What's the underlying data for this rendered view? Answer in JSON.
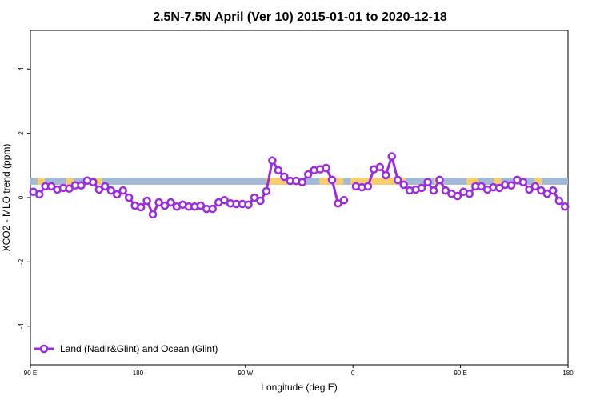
{
  "chart_data": {
    "type": "line",
    "title": "2.5N-7.5N April (Ver 10)   2015-01-01 to 2020-12-18",
    "xlabel": "Longitude (deg E)",
    "ylabel": "XCO2 - MLO trend (ppm)",
    "xlim": [
      90,
      450
    ],
    "ylim": [
      -5.2,
      5.2
    ],
    "x_ticks": [
      {
        "value": 90,
        "label": "90 E"
      },
      {
        "value": 180,
        "label": "180"
      },
      {
        "value": 270,
        "label": "90 W"
      },
      {
        "value": 360,
        "label": "0"
      },
      {
        "value": 450,
        "label": "90 E"
      },
      {
        "value": 540,
        "label": "180"
      }
    ],
    "y_ticks": [
      -4,
      -2,
      0,
      2,
      4
    ],
    "x_display_range": [
      90,
      540
    ],
    "band": {
      "y_range": [
        0.4,
        0.62
      ],
      "color_ocean": "#a2b9d6",
      "color_land": "#f7cc6a",
      "land_segments": [
        [
          96,
          102
        ],
        [
          120,
          126
        ],
        [
          145,
          150
        ],
        [
          287,
          318
        ],
        [
          332,
          352
        ],
        [
          358,
          404
        ],
        [
          428,
          434
        ],
        [
          455,
          465
        ],
        [
          478,
          484
        ],
        [
          512,
          518
        ]
      ]
    },
    "series": [
      {
        "name": "Land (Nadir&Glint) and Ocean (Glint)",
        "color": "#9b2be0",
        "segments": [
          {
            "x": [
              92.5,
              97.5,
              102.5,
              107.5,
              112.5,
              117.5,
              122.5,
              127.5,
              132.5,
              137.5,
              142.5,
              147.5,
              152.5,
              157.5,
              162.5,
              167.5,
              172.5,
              177.5,
              182.5,
              187.5,
              192.5,
              197.5,
              202.5,
              207.5,
              212.5,
              217.5,
              222.5,
              227.5,
              232.5,
              237.5,
              242.5,
              247.5,
              252.5,
              257.5,
              262.5,
              267.5,
              272.5,
              277.5,
              282.5,
              287.5,
              292.5,
              297.5,
              302.5,
              307.5,
              312.5,
              317.5,
              322.5,
              327.5,
              332.5,
              337.5,
              342.5,
              347.5
            ],
            "y": [
              0.18,
              0.1,
              0.35,
              0.35,
              0.25,
              0.3,
              0.28,
              0.38,
              0.38,
              0.53,
              0.48,
              0.25,
              0.35,
              0.22,
              0.1,
              0.22,
              0.0,
              -0.25,
              -0.3,
              -0.1,
              -0.52,
              -0.15,
              -0.25,
              -0.15,
              -0.28,
              -0.22,
              -0.28,
              -0.28,
              -0.25,
              -0.35,
              -0.35,
              -0.15,
              -0.08,
              -0.18,
              -0.2,
              -0.2,
              -0.22,
              0.0,
              -0.1,
              0.2,
              1.15,
              0.85,
              0.65,
              0.52,
              0.52,
              0.48,
              0.72,
              0.85,
              0.88,
              0.92,
              0.55,
              -0.18
            ]
          },
          {
            "x": [
              352.5
            ],
            "y": [
              -0.08
            ]
          },
          {
            "x": [
              362.5,
              367.5,
              372.5,
              377.5,
              382.5,
              387.5,
              392.5,
              397.5,
              402.5,
              407.5,
              412.5,
              417.5,
              422.5,
              427.5,
              432.5,
              437.5,
              442.5,
              447.5,
              452.5,
              457.5,
              462.5,
              467.5,
              472.5,
              477.5,
              482.5,
              487.5,
              492.5,
              497.5,
              502.5,
              507.5,
              512.5,
              517.5,
              522.5,
              527.5,
              532.5,
              537.5
            ],
            "y": [
              0.35,
              0.32,
              0.35,
              0.88,
              0.95,
              0.7,
              1.28,
              0.55,
              0.4,
              0.22,
              0.25,
              0.3,
              0.48,
              0.22,
              0.55,
              0.22,
              0.12,
              0.05,
              0.18,
              0.12,
              0.35,
              0.35,
              0.25,
              0.32,
              0.3,
              0.4,
              0.38,
              0.55,
              0.48,
              0.25,
              0.35,
              0.22,
              0.12,
              0.22,
              -0.1,
              -0.28
            ]
          }
        ]
      }
    ],
    "legend": {
      "position": "bottom-left",
      "entries": [
        "Land (Nadir&Glint) and Ocean (Glint)"
      ]
    },
    "grid": false
  }
}
